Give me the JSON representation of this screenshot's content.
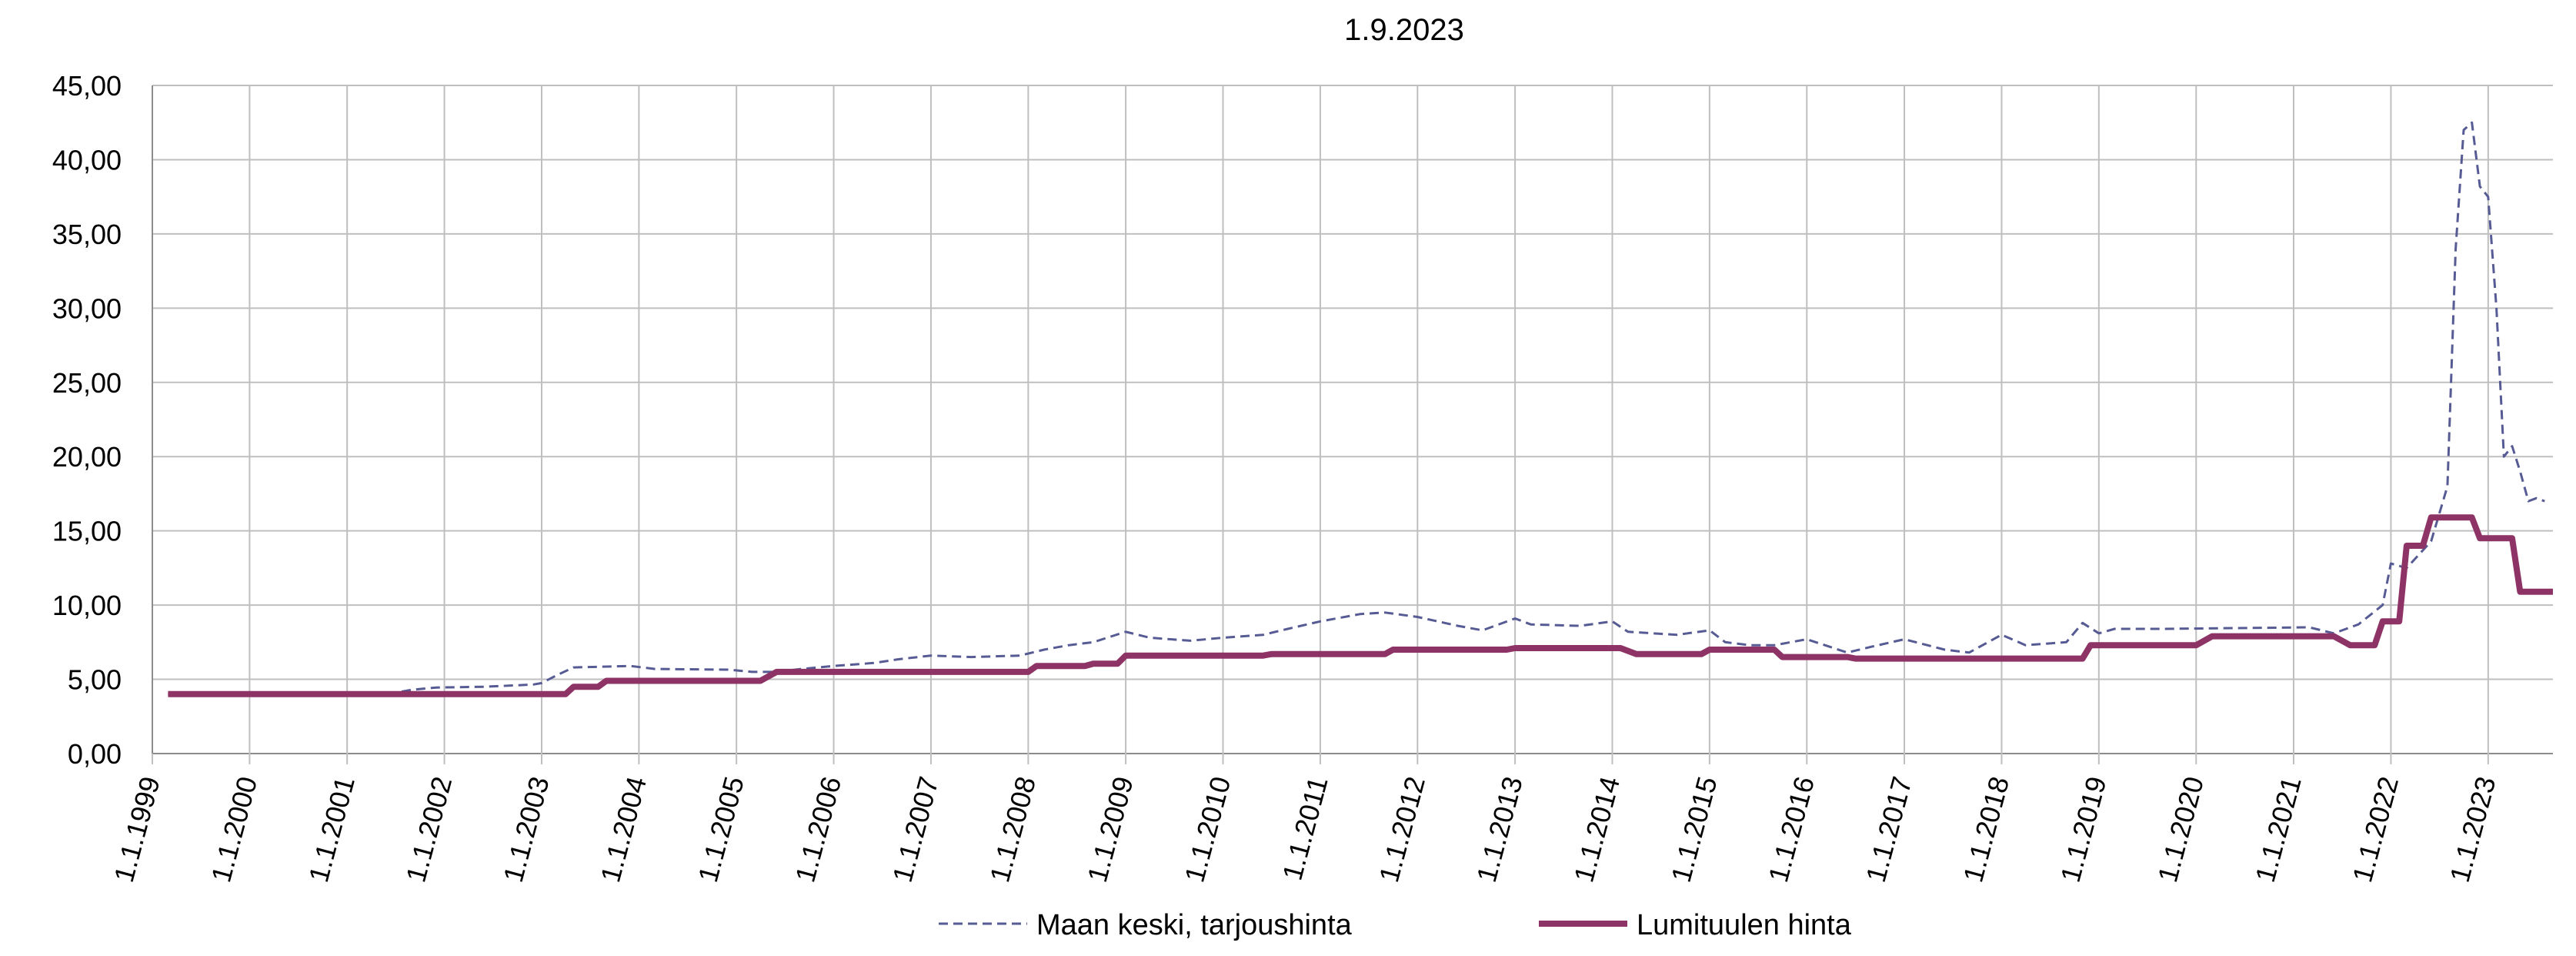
{
  "chart_data": {
    "type": "line",
    "title": "1.9.2023",
    "xlabel": "",
    "ylabel": "",
    "ylim": [
      0,
      45
    ],
    "xlim": [
      "1999-01-01",
      "2023-09-01"
    ],
    "y_ticks": [
      "0,00",
      "5,00",
      "10,00",
      "15,00",
      "20,00",
      "25,00",
      "30,00",
      "35,00",
      "40,00",
      "45,00"
    ],
    "x_ticks": [
      {
        "label": "1.1.1999",
        "date": "1999-01-01"
      },
      {
        "label": "1.1.2000",
        "date": "2000-01-01"
      },
      {
        "label": "1.1.2001",
        "date": "2001-01-01"
      },
      {
        "label": "1.1.2002",
        "date": "2002-01-01"
      },
      {
        "label": "1.1.2003",
        "date": "2003-01-01"
      },
      {
        "label": "1.1.2004",
        "date": "2004-01-01"
      },
      {
        "label": "1.1.2005",
        "date": "2005-01-01"
      },
      {
        "label": "1.1.2006",
        "date": "2006-01-01"
      },
      {
        "label": "1.1.2007",
        "date": "2007-01-01"
      },
      {
        "label": "1.1.2008",
        "date": "2008-01-01"
      },
      {
        "label": "1.1.2009",
        "date": "2009-01-01"
      },
      {
        "label": "1.1.2010",
        "date": "2010-01-01"
      },
      {
        "label": "1.1.2011",
        "date": "2011-01-01"
      },
      {
        "label": "1.1.2012",
        "date": "2012-01-01"
      },
      {
        "label": "1.1.2013",
        "date": "2013-01-01"
      },
      {
        "label": "1.1.2014",
        "date": "2014-01-01"
      },
      {
        "label": "1.1.2015",
        "date": "2015-01-01"
      },
      {
        "label": "1.1.2016",
        "date": "2016-01-01"
      },
      {
        "label": "1.1.2017",
        "date": "2017-01-01"
      },
      {
        "label": "1.1.2018",
        "date": "2018-01-01"
      },
      {
        "label": "1.1.2019",
        "date": "2019-01-01"
      },
      {
        "label": "1.1.2020",
        "date": "2020-01-01"
      },
      {
        "label": "1.1.2021",
        "date": "2021-01-01"
      },
      {
        "label": "1.1.2022",
        "date": "2022-01-01"
      },
      {
        "label": "1.1.2023",
        "date": "2023-01-01"
      }
    ],
    "grid": true,
    "legend_position": "bottom",
    "series": [
      {
        "name": "Maan keski, tarjoushinta",
        "color": "#565b94",
        "style": "dashed",
        "points": [
          [
            "1999-03-01",
            4.0
          ],
          [
            "2001-06-01",
            4.0
          ],
          [
            "2001-09-01",
            4.3
          ],
          [
            "2001-12-01",
            4.45
          ],
          [
            "2002-06-01",
            4.5
          ],
          [
            "2002-12-01",
            4.65
          ],
          [
            "2003-01-01",
            4.75
          ],
          [
            "2003-03-01",
            5.3
          ],
          [
            "2003-05-01",
            5.8
          ],
          [
            "2003-12-01",
            5.9
          ],
          [
            "2004-03-01",
            5.7
          ],
          [
            "2004-12-01",
            5.65
          ],
          [
            "2005-03-01",
            5.5
          ],
          [
            "2005-06-01",
            5.5
          ],
          [
            "2005-09-01",
            5.7
          ],
          [
            "2006-01-01",
            5.9
          ],
          [
            "2006-06-01",
            6.1
          ],
          [
            "2006-09-01",
            6.35
          ],
          [
            "2007-01-01",
            6.6
          ],
          [
            "2007-06-01",
            6.5
          ],
          [
            "2007-12-01",
            6.6
          ],
          [
            "2008-03-01",
            7.0
          ],
          [
            "2008-06-01",
            7.3
          ],
          [
            "2008-09-01",
            7.5
          ],
          [
            "2009-01-01",
            8.2
          ],
          [
            "2009-04-01",
            7.8
          ],
          [
            "2009-09-01",
            7.6
          ],
          [
            "2010-01-01",
            7.8
          ],
          [
            "2010-06-01",
            8.0
          ],
          [
            "2010-09-01",
            8.4
          ],
          [
            "2011-01-01",
            8.9
          ],
          [
            "2011-06-01",
            9.4
          ],
          [
            "2011-09-01",
            9.5
          ],
          [
            "2012-01-01",
            9.2
          ],
          [
            "2012-06-01",
            8.6
          ],
          [
            "2012-09-01",
            8.3
          ],
          [
            "2013-01-01",
            9.1
          ],
          [
            "2013-03-01",
            8.7
          ],
          [
            "2013-09-01",
            8.6
          ],
          [
            "2014-01-01",
            8.9
          ],
          [
            "2014-03-01",
            8.2
          ],
          [
            "2014-09-01",
            8.0
          ],
          [
            "2015-01-01",
            8.3
          ],
          [
            "2015-03-01",
            7.5
          ],
          [
            "2015-06-01",
            7.3
          ],
          [
            "2015-09-01",
            7.3
          ],
          [
            "2016-01-01",
            7.7
          ],
          [
            "2016-06-01",
            6.8
          ],
          [
            "2016-09-01",
            7.2
          ],
          [
            "2017-01-01",
            7.7
          ],
          [
            "2017-06-01",
            7.0
          ],
          [
            "2017-09-01",
            6.8
          ],
          [
            "2018-01-01",
            8.0
          ],
          [
            "2018-04-01",
            7.3
          ],
          [
            "2018-09-01",
            7.5
          ],
          [
            "2018-11-01",
            8.8
          ],
          [
            "2019-01-01",
            8.1
          ],
          [
            "2019-03-01",
            8.4
          ],
          [
            "2019-09-01",
            8.4
          ],
          [
            "2021-03-01",
            8.5
          ],
          [
            "2021-06-01",
            8.1
          ],
          [
            "2021-09-01",
            8.7
          ],
          [
            "2021-12-01",
            10.0
          ],
          [
            "2022-01-01",
            12.8
          ],
          [
            "2022-03-01",
            12.5
          ],
          [
            "2022-06-01",
            14.3
          ],
          [
            "2022-08-01",
            18.0
          ],
          [
            "2022-09-01",
            34.0
          ],
          [
            "2022-10-01",
            42.0
          ],
          [
            "2022-11-01",
            42.5
          ],
          [
            "2022-12-01",
            38.2
          ],
          [
            "2023-01-01",
            37.5
          ],
          [
            "2023-02-01",
            30.0
          ],
          [
            "2023-03-01",
            20.0
          ],
          [
            "2023-04-01",
            20.7
          ],
          [
            "2023-05-01",
            19.0
          ],
          [
            "2023-06-01",
            17.0
          ],
          [
            "2023-07-01",
            17.2
          ],
          [
            "2023-08-01",
            17.0
          ]
        ]
      },
      {
        "name": "Lumituulen hinta",
        "color": "#8e3366",
        "style": "solid",
        "points": [
          [
            "1999-03-01",
            4.0
          ],
          [
            "2003-04-01",
            4.0
          ],
          [
            "2003-05-01",
            4.5
          ],
          [
            "2003-08-01",
            4.5
          ],
          [
            "2003-09-01",
            4.9
          ],
          [
            "2005-04-01",
            4.9
          ],
          [
            "2005-06-01",
            5.5
          ],
          [
            "2008-01-01",
            5.5
          ],
          [
            "2008-02-01",
            5.9
          ],
          [
            "2008-08-01",
            5.9
          ],
          [
            "2008-09-01",
            6.05
          ],
          [
            "2008-12-01",
            6.05
          ],
          [
            "2009-01-01",
            6.6
          ],
          [
            "2010-06-01",
            6.6
          ],
          [
            "2010-07-01",
            6.7
          ],
          [
            "2011-09-01",
            6.7
          ],
          [
            "2011-10-01",
            7.0
          ],
          [
            "2012-12-01",
            7.0
          ],
          [
            "2013-01-01",
            7.1
          ],
          [
            "2014-02-01",
            7.1
          ],
          [
            "2014-04-01",
            6.7
          ],
          [
            "2014-12-01",
            6.7
          ],
          [
            "2015-01-01",
            7.0
          ],
          [
            "2015-09-01",
            7.0
          ],
          [
            "2015-10-01",
            6.5
          ],
          [
            "2016-06-01",
            6.5
          ],
          [
            "2016-07-01",
            6.4
          ],
          [
            "2018-11-01",
            6.4
          ],
          [
            "2018-12-01",
            7.3
          ],
          [
            "2020-01-01",
            7.3
          ],
          [
            "2020-03-01",
            7.9
          ],
          [
            "2021-06-01",
            7.9
          ],
          [
            "2021-08-01",
            7.3
          ],
          [
            "2021-11-01",
            7.3
          ],
          [
            "2021-12-01",
            8.9
          ],
          [
            "2022-02-01",
            8.9
          ],
          [
            "2022-03-01",
            14.0
          ],
          [
            "2022-05-01",
            14.0
          ],
          [
            "2022-06-01",
            15.9
          ],
          [
            "2022-11-01",
            15.9
          ],
          [
            "2022-12-01",
            14.5
          ],
          [
            "2023-04-01",
            14.5
          ],
          [
            "2023-05-01",
            10.9
          ],
          [
            "2023-09-01",
            10.9
          ]
        ]
      }
    ]
  }
}
